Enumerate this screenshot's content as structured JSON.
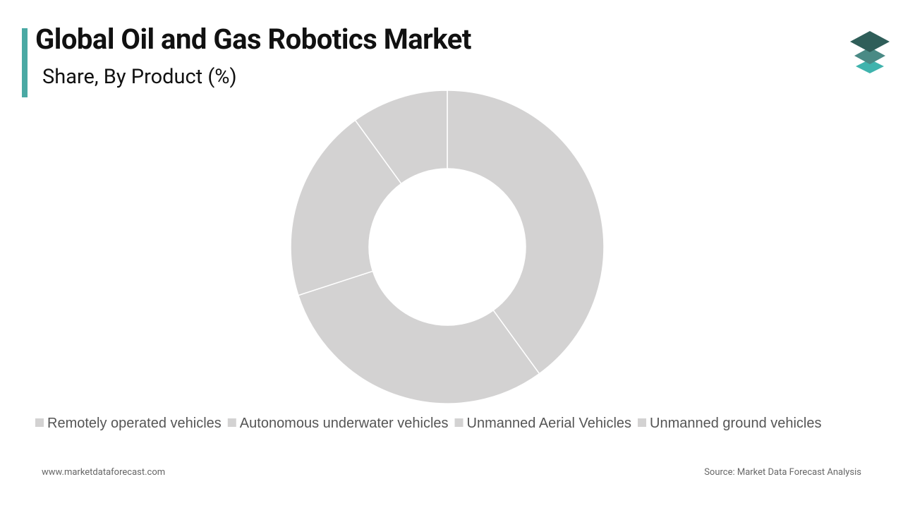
{
  "chart_data": {
    "type": "donut",
    "title": "Global Oil and Gas Robotics Market",
    "subtitle": "Share, By Product (%)",
    "categories": [
      "Remotely operated vehicles",
      "Autonomous underwater vehicles",
      "Unmanned Aerial Vehicles",
      "Unmanned ground vehicles"
    ],
    "values": [
      40,
      30,
      20,
      10
    ],
    "colors": [
      "#d3d2d2",
      "#d3d2d2",
      "#d3d2d2",
      "#d3d2d2"
    ],
    "website": "www.marketdataforecast.com",
    "source": "Source: Market Data Forecast Analysis"
  }
}
